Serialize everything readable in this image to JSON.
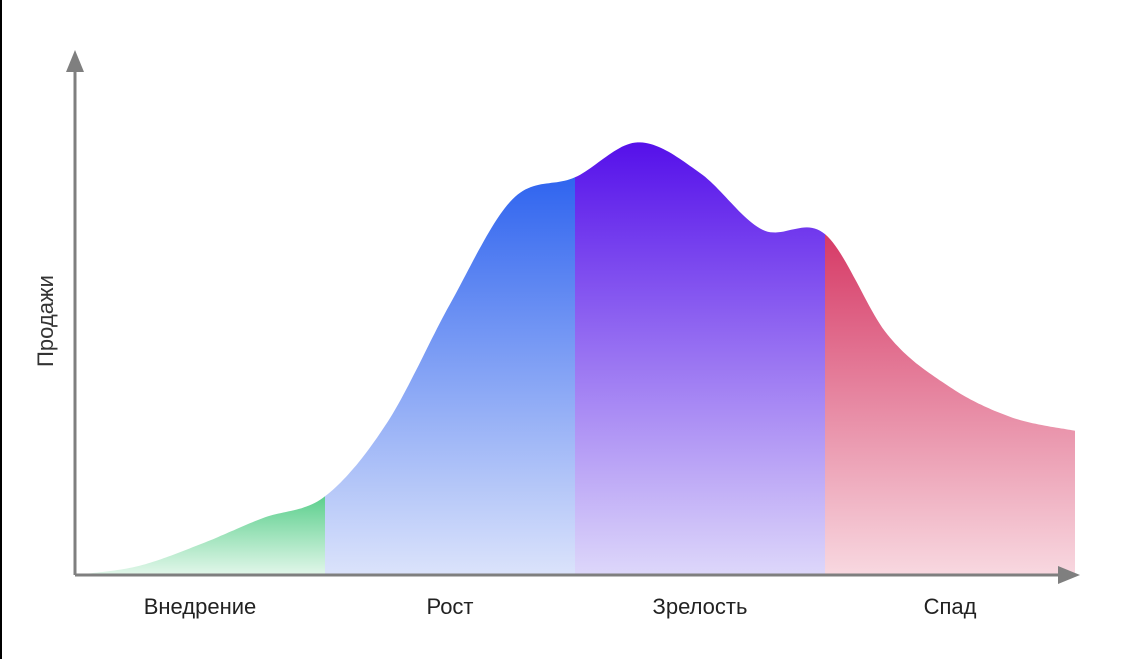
{
  "chart_data": {
    "type": "area",
    "ylabel": "Продажи",
    "xlabel": "",
    "categories": [
      "Внедрение",
      "Рост",
      "Зрелость",
      "Спад"
    ],
    "x_range": [
      0,
      4
    ],
    "ylim": [
      0,
      1
    ],
    "curve": {
      "x": [
        0,
        0.25,
        0.5,
        0.75,
        1.0,
        1.25,
        1.5,
        1.75,
        2.0,
        2.25,
        2.5,
        2.75,
        3.0,
        3.25,
        3.5,
        3.75,
        4.0
      ],
      "y": [
        0.0,
        0.02,
        0.07,
        0.13,
        0.18,
        0.35,
        0.62,
        0.86,
        0.91,
        0.99,
        0.92,
        0.79,
        0.78,
        0.55,
        0.43,
        0.36,
        0.33
      ]
    },
    "colors": {
      "Внедрение": [
        "#5ccf8d",
        "#e2f7ea"
      ],
      "Рост": [
        "#2f64ef",
        "#dbe3fb"
      ],
      "Зрелость": [
        "#5510ea",
        "#ddd7fa"
      ],
      "Спад": [
        "#d63a66",
        "#f8d8e0"
      ],
      "axis": "#7f7f7f"
    },
    "grid": false,
    "legend": "none"
  }
}
